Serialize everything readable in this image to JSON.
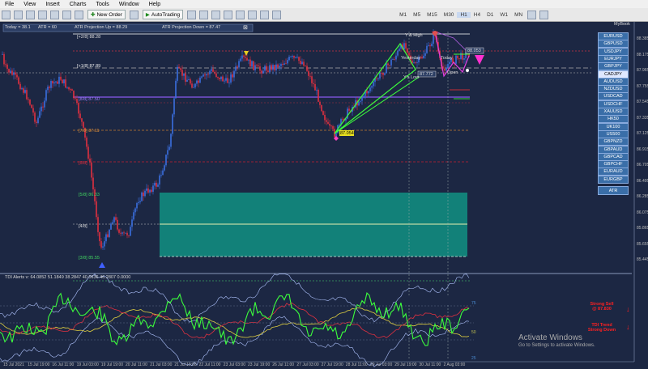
{
  "menu": [
    "File",
    "View",
    "Insert",
    "Charts",
    "Tools",
    "Window",
    "Help"
  ],
  "toolbar": {
    "new_order": "New Order",
    "auto_trading": "AutoTrading",
    "timeframes": [
      "M1",
      "M5",
      "M15",
      "M30",
      "H1",
      "H4",
      "D1",
      "W1",
      "MN"
    ],
    "active_tf": "H1"
  },
  "chart_header": {
    "today": "Today = 38.1",
    "atr": "ATR = 60",
    "atr_up": "ATR Projection Up = 88.29",
    "atr_down": "ATR Projection Down = 87.47"
  },
  "levels": {
    "l28": "[+2/8]  88.28",
    "l18": "[+1/8]  87.89",
    "l78": "[7/8]  87.11",
    "l58": "[5/8]  86.33",
    "l48": "[4/8]",
    "l38": "[3/8]  85.55",
    "l68": "[6/8]",
    "l88": "[8/8]  87.50"
  },
  "annotations": {
    "yhigh": "Y & High",
    "yesterday": "Yesterday",
    "ylow": "Y's Low",
    "today_lbl": "Today",
    "open_lbl": "Open",
    "price1": "87.772",
    "price2": "87.054",
    "price3": "88.053"
  },
  "price_axis": [
    "88.385",
    "88.175",
    "87.965",
    "87.755",
    "87.545",
    "87.335",
    "87.125",
    "86.915",
    "86.705",
    "86.495",
    "86.285",
    "86.075",
    "85.865",
    "85.655",
    "85.445"
  ],
  "date_axis": [
    "15 Jul 2021",
    "15 Jul 19:00",
    "16 Jul 11:00",
    "19 Jul 03:00",
    "19 Jul 19:00",
    "20 Jul 11:00",
    "21 Jul 03:00",
    "21 Jul 19:00",
    "22 Jul 11:00",
    "23 Jul 03:00",
    "23 Jul 19:00",
    "26 Jul 11:00",
    "27 Jul 03:00",
    "27 Jul 19:00",
    "28 Jul 11:00",
    "29 Jul 03:00",
    "29 Jul 19:00",
    "30 Jul 11:00",
    "2 Aug 03:00"
  ],
  "symbols": [
    "EURUSD",
    "GBPUSD",
    "USDJPY",
    "EURJPY",
    "GBPJPY",
    "CADJPY",
    "AUDUSD",
    "NZDUSD",
    "USDCAD",
    "USDCHF",
    "XAUUSD",
    "HK50",
    "UK100",
    "US500",
    "GBPNZD",
    "GBPAUD",
    "GBPCAD",
    "GBPCHF",
    "EURAUD",
    "EURGBP"
  ],
  "selected_symbol": "CADJPY",
  "atr_button": "ATR",
  "mybook": "MyBook",
  "tdi": {
    "header": "TDI Alerts v: 64.0852 51.1849 38.2847 40.0636 46.2807 0.0000",
    "levels": [
      "75",
      "50",
      "25"
    ],
    "signal1": "Strong Sell",
    "signal1b": "@ 87.830",
    "signal2": "TDI Trend",
    "signal2b": "Strong Down"
  },
  "watermark": {
    "line1": "Activate Windows",
    "line2": "Go to Settings to activate Windows."
  },
  "colors": {
    "bg": "#1c2743",
    "teal": "#138a7e",
    "green_line": "#3cff3c",
    "magenta": "#e040e0"
  }
}
